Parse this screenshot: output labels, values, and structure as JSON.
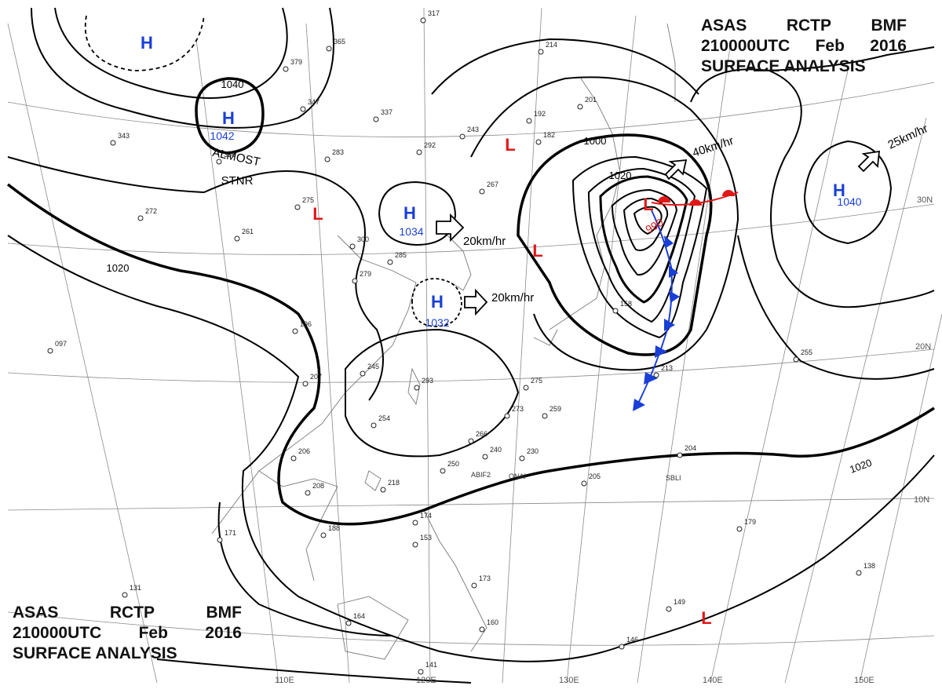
{
  "header": {
    "line1_parts": [
      "ASAS",
      "RCTP",
      "BMF"
    ],
    "line2_parts": [
      "210000UTC",
      "Feb",
      "2016"
    ],
    "line3": "SURFACE ANALYSIS"
  },
  "colors": {
    "high": "#1a3fd6",
    "low": "#e01818",
    "isobar": "#000000",
    "grid": "#888888",
    "coast": "#777777",
    "cold_front": "#1a3fd6",
    "warm_front": "#e01818"
  },
  "longitude_labels": [
    "110E",
    "120E",
    "130E",
    "140E",
    "150E"
  ],
  "latitude_labels": [
    "30N",
    "20N",
    "10N"
  ],
  "isobar_labels": [
    "1040",
    "1020",
    "1000",
    "1020",
    "1020"
  ],
  "pressure_centers": [
    {
      "type": "H",
      "value": ""
    },
    {
      "type": "H",
      "value": "1042"
    },
    {
      "type": "H",
      "value": "1034"
    },
    {
      "type": "H",
      "value": "1032"
    },
    {
      "type": "H",
      "value": "1040"
    },
    {
      "type": "L",
      "value": ""
    },
    {
      "type": "L",
      "value": ""
    },
    {
      "type": "L",
      "value": ""
    },
    {
      "type": "L",
      "value": "990"
    },
    {
      "type": "L",
      "value": ""
    }
  ],
  "stationary_note": [
    "ALMOST",
    "STNR"
  ],
  "motion_labels": [
    "20km/hr",
    "20km/hr",
    "40km/hr",
    "25km/hr"
  ],
  "station_names": [
    "ABIF2",
    "ONAI",
    "SBLI"
  ],
  "station_pressures": [
    "317",
    "365",
    "379",
    "347",
    "337",
    "343",
    "336",
    "283",
    "292",
    "275",
    "261",
    "272",
    "300",
    "285",
    "279",
    "196",
    "245",
    "207",
    "206",
    "208",
    "293",
    "254",
    "275",
    "273",
    "259",
    "266",
    "240",
    "230",
    "250",
    "218",
    "192",
    "201",
    "182",
    "214",
    "243",
    "267",
    "158",
    "213",
    "204",
    "205",
    "174",
    "153",
    "171",
    "188",
    "164",
    "141",
    "131",
    "160",
    "173",
    "179",
    "255",
    "149",
    "146",
    "138",
    "097"
  ]
}
